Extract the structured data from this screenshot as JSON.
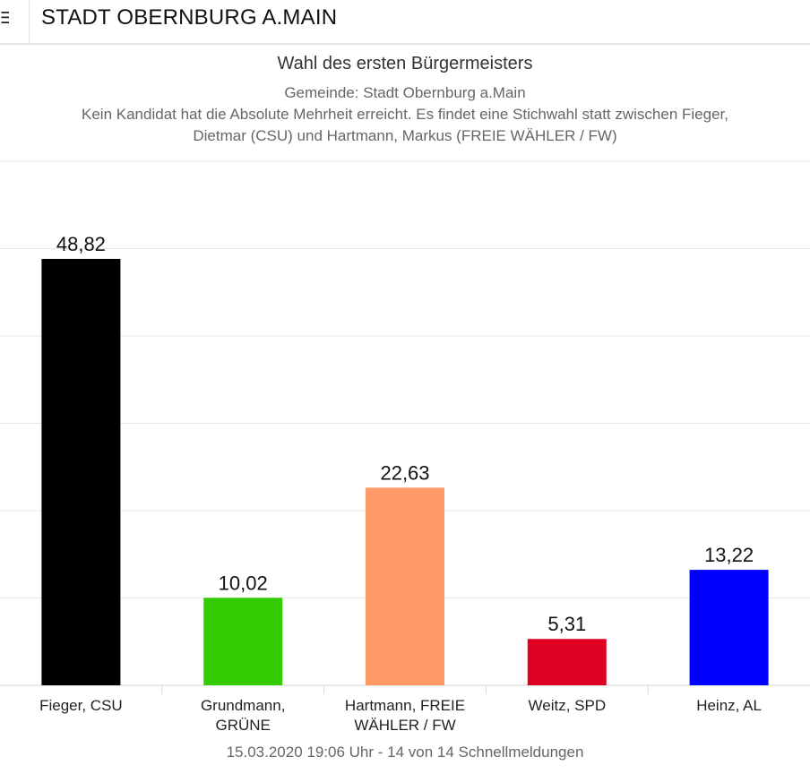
{
  "header": {
    "title": "STADT OBERNBURG A.MAIN"
  },
  "chart_data": {
    "type": "bar",
    "title": "Wahl des ersten Bürgermeisters",
    "subtitle": [
      "Gemeinde: Stadt Obernburg a.Main",
      "Kein Kandidat hat die Absolute Mehrheit erreicht. Es findet eine Stichwahl statt zwischen Fieger,",
      "Dietmar (CSU) und Hartmann, Markus (FREIE WÄHLER / FW)"
    ],
    "categories": [
      [
        "Fieger, CSU"
      ],
      [
        "Grundmann,",
        "GRÜNE"
      ],
      [
        "Hartmann, FREIE",
        "WÄHLER / FW"
      ],
      [
        "Weitz, SPD"
      ],
      [
        "Heinz, AL"
      ]
    ],
    "values": [
      48.82,
      10.02,
      22.63,
      5.31,
      13.22
    ],
    "value_labels": [
      "48,82",
      "10,02",
      "22,63",
      "5,31",
      "13,22"
    ],
    "colors": [
      "#000000",
      "#33cc00",
      "#ff9966",
      "#dd0022",
      "#0000ff"
    ],
    "ylim": [
      0,
      60
    ],
    "grid": true,
    "footer": "15.03.2020 19:06 Uhr - 14 von 14 Schnellmeldungen"
  }
}
